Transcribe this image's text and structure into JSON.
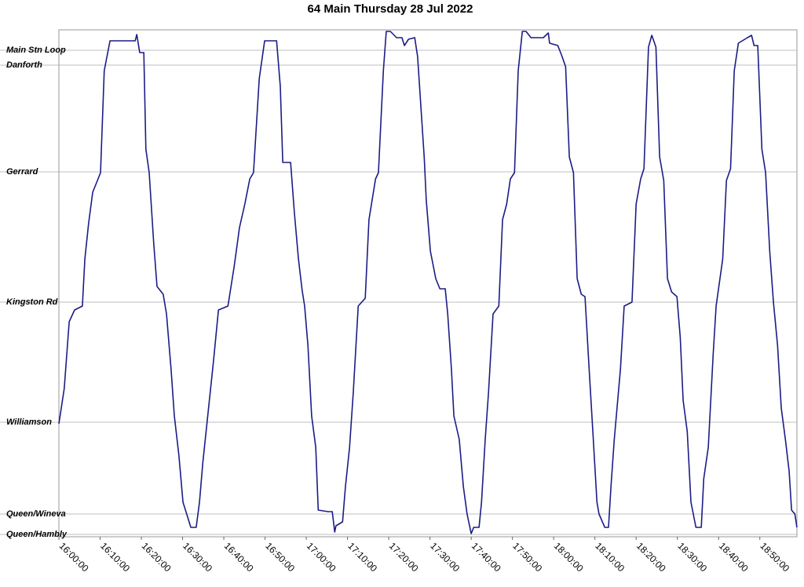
{
  "chart_data": {
    "type": "line",
    "title": "64 Main Thursday 28 Jul 2022",
    "color": "#1c1c86",
    "grid": true,
    "xlim": [
      0,
      179
    ],
    "ylim": [
      0,
      646
    ],
    "xticks": [
      {
        "value": 0,
        "label": "16:00:00"
      },
      {
        "value": 10,
        "label": "16:10:00"
      },
      {
        "value": 20,
        "label": "16:20:00"
      },
      {
        "value": 30,
        "label": "16:30:00"
      },
      {
        "value": 40,
        "label": "16:40:00"
      },
      {
        "value": 50,
        "label": "16:50:00"
      },
      {
        "value": 60,
        "label": "17:00:00"
      },
      {
        "value": 70,
        "label": "17:10:00"
      },
      {
        "value": 80,
        "label": "17:20:00"
      },
      {
        "value": 90,
        "label": "17:30:00"
      },
      {
        "value": 100,
        "label": "17:40:00"
      },
      {
        "value": 110,
        "label": "17:50:00"
      },
      {
        "value": 120,
        "label": "18:00:00"
      },
      {
        "value": 130,
        "label": "18:10:00"
      },
      {
        "value": 140,
        "label": "18:20:00"
      },
      {
        "value": 150,
        "label": "18:30:00"
      },
      {
        "value": 160,
        "label": "18:40:00"
      },
      {
        "value": 170,
        "label": "18:50:00"
      }
    ],
    "yticks": [
      {
        "value": 3,
        "label": "Queen/Hambly"
      },
      {
        "value": 29,
        "label": "Queen/Wineva"
      },
      {
        "value": 146,
        "label": "Williamson"
      },
      {
        "value": 299,
        "label": "Kingston Rd"
      },
      {
        "value": 465,
        "label": "Gerrard"
      },
      {
        "value": 601,
        "label": "Danforth"
      },
      {
        "value": 620,
        "label": "Main Stn Loop"
      }
    ],
    "x": [
      0,
      1.3,
      2.5,
      3.8,
      5.7,
      6.3,
      7.2,
      8.2,
      9.5,
      10.1,
      11.0,
      12.4,
      18.5,
      18.9,
      19.6,
      20.6,
      21.1,
      21.9,
      23.0,
      23.8,
      25.3,
      26.1,
      27.2,
      28.0,
      29.1,
      30.1,
      31.0,
      32.0,
      33.3,
      34.1,
      34.9,
      35.8,
      36.8,
      37.5,
      38.7,
      41.0,
      42.5,
      43.8,
      45.1,
      46.3,
      47.2,
      48.6,
      49.9,
      52.8,
      53.7,
      54.3,
      56.2,
      57.1,
      58.1,
      59.0,
      59.6,
      60.4,
      61.3,
      62.3,
      62.9,
      65.3,
      66.3,
      66.9,
      67.2,
      68.8,
      69.5,
      70.5,
      71.4,
      72.6,
      74.3,
      75.2,
      76.8,
      77.5,
      78.7,
      79.4,
      80.4,
      81.9,
      83.2,
      83.8,
      84.8,
      86.3,
      87.0,
      88.6,
      89.1,
      90.1,
      91.4,
      92.4,
      93.7,
      94.3,
      95.2,
      95.8,
      97.1,
      98.1,
      99.0,
      100.0,
      100.6,
      101.9,
      102.5,
      103.4,
      104.2,
      105.3,
      106.7,
      107.6,
      108.6,
      109.5,
      110.5,
      111.4,
      112.4,
      113.3,
      114.5,
      117.5,
      118.7,
      119.0,
      121.0,
      121.9,
      122.9,
      123.8,
      124.8,
      125.7,
      126.7,
      127.6,
      128.6,
      129.5,
      130.5,
      131.0,
      132.4,
      133.3,
      133.9,
      134.7,
      136.2,
      137.1,
      139.0,
      140.0,
      141.1,
      141.9,
      143.0,
      143.8,
      144.8,
      145.7,
      146.7,
      147.6,
      148.6,
      149.9,
      150.7,
      151.4,
      152.4,
      153.3,
      154.5,
      155.8,
      156.4,
      157.5,
      158.7,
      159.4,
      161.0,
      161.9,
      162.9,
      163.8,
      164.8,
      167.0,
      168.0,
      168.6,
      169.5,
      170.5,
      171.4,
      172.4,
      173.3,
      174.3,
      175.2,
      176.2,
      177.1,
      177.7,
      178.5,
      179.0
    ],
    "values": [
      144,
      189,
      274,
      289,
      294,
      354,
      399,
      439,
      456,
      464,
      594,
      632,
      632,
      640,
      617,
      617,
      494,
      464,
      374,
      319,
      309,
      284,
      214,
      154,
      104,
      44,
      29,
      12,
      12,
      44,
      94,
      139,
      189,
      224,
      289,
      294,
      344,
      394,
      424,
      456,
      464,
      584,
      632,
      632,
      574,
      477,
      477,
      414,
      354,
      314,
      294,
      244,
      154,
      114,
      34,
      32,
      32,
      6,
      14,
      19,
      64,
      114,
      184,
      294,
      304,
      404,
      456,
      464,
      594,
      644,
      644,
      636,
      636,
      626,
      634,
      636,
      612,
      484,
      429,
      364,
      329,
      316,
      316,
      284,
      214,
      154,
      124,
      64,
      29,
      4,
      12,
      12,
      44,
      124,
      184,
      284,
      294,
      404,
      424,
      456,
      464,
      594,
      644,
      644,
      636,
      636,
      642,
      629,
      626,
      614,
      599,
      484,
      464,
      329,
      309,
      306,
      214,
      134,
      44,
      29,
      12,
      12,
      64,
      124,
      214,
      294,
      299,
      424,
      456,
      469,
      624,
      639,
      624,
      484,
      454,
      329,
      312,
      306,
      254,
      174,
      134,
      44,
      12,
      12,
      74,
      114,
      234,
      294,
      354,
      454,
      469,
      594,
      629,
      636,
      639,
      626,
      626,
      494,
      464,
      364,
      299,
      244,
      164,
      124,
      84,
      34,
      29,
      12
    ]
  }
}
